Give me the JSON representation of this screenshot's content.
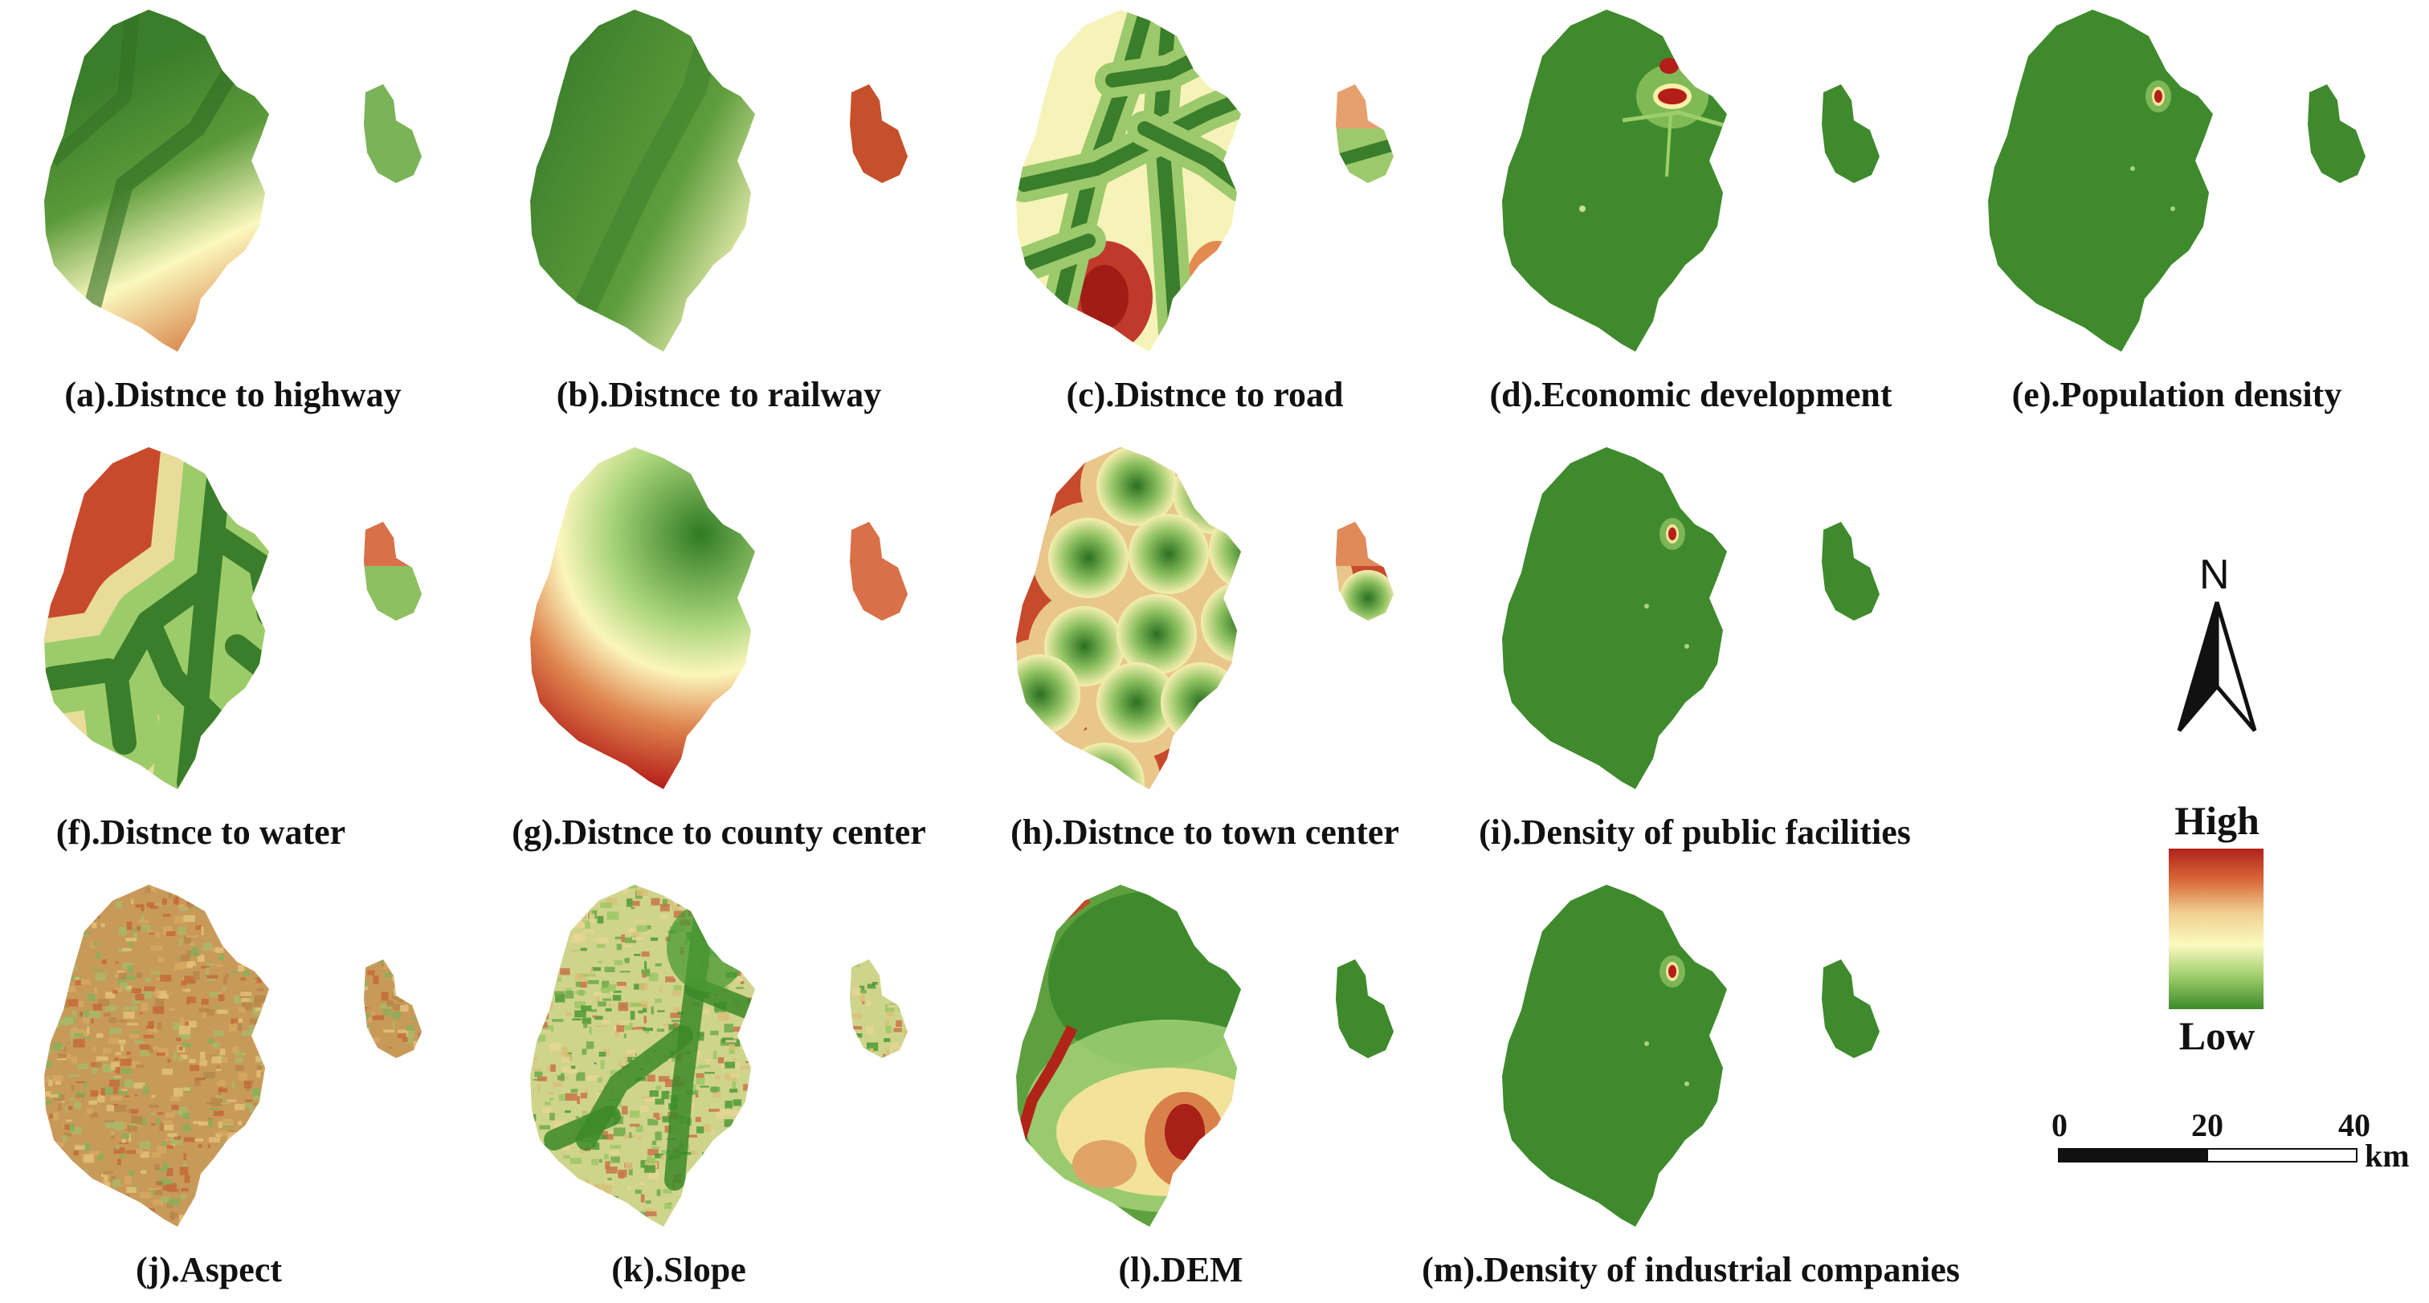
{
  "panels": [
    {
      "id": "a",
      "caption": "(a).Distnce to highway",
      "pattern": "highway"
    },
    {
      "id": "b",
      "caption": "(b).Distnce to railway",
      "pattern": "railway"
    },
    {
      "id": "c",
      "caption": "(c).Distnce to road",
      "pattern": "road"
    },
    {
      "id": "d",
      "caption": "(d).Economic development",
      "pattern": "economic"
    },
    {
      "id": "e",
      "caption": "(e).Population density",
      "pattern": "population"
    },
    {
      "id": "f",
      "caption": "(f).Distnce to water",
      "pattern": "water"
    },
    {
      "id": "g",
      "caption": "(g).Distnce to county center",
      "pattern": "county"
    },
    {
      "id": "h",
      "caption": "(h).Distnce to town center",
      "pattern": "town"
    },
    {
      "id": "i",
      "caption": "(i).Density of public facilities",
      "pattern": "public"
    },
    {
      "id": "j",
      "caption": "(j).Aspect",
      "pattern": "aspect"
    },
    {
      "id": "k",
      "caption": "(k).Slope",
      "pattern": "slope"
    },
    {
      "id": "l",
      "caption": "(l).DEM",
      "pattern": "dem"
    },
    {
      "id": "m",
      "caption": "(m).Density of industrial companies",
      "pattern": "industrial"
    }
  ],
  "legend": {
    "high_label": "High",
    "low_label": "Low",
    "colors": [
      "#b0221a",
      "#d86a3a",
      "#f0d090",
      "#fafac0",
      "#9ccc6a",
      "#3d8a2a"
    ]
  },
  "north_arrow": {
    "label": "N",
    "icon": "north-arrow-icon"
  },
  "scale_bar": {
    "ticks": [
      "0",
      "20",
      "40"
    ],
    "unit": "km"
  },
  "colors": {
    "low": "#3a7d2a",
    "mid": "#fbf8be",
    "high": "#b41e18"
  }
}
